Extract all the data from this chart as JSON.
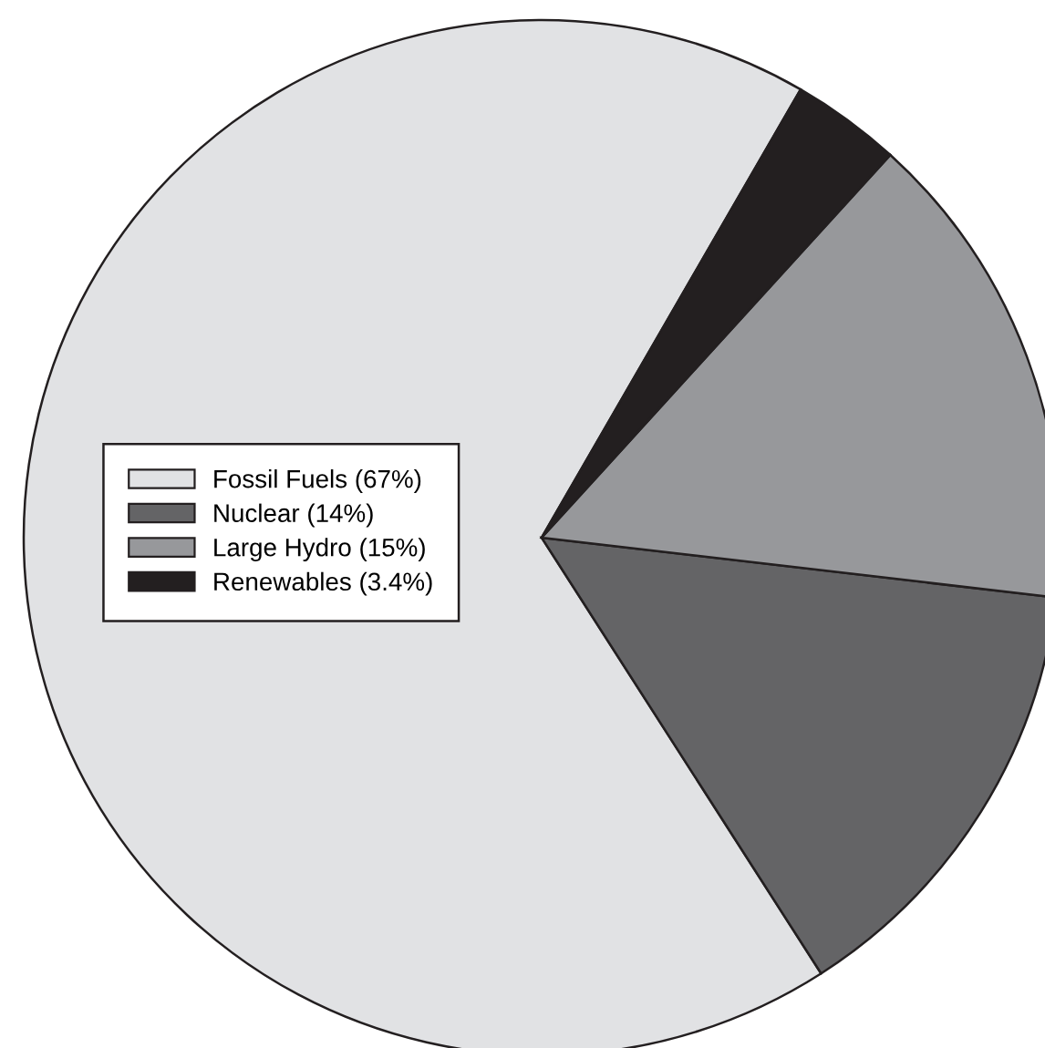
{
  "chart_data": {
    "type": "pie",
    "categories": [
      "Fossil Fuels (67%)",
      "Nuclear (14%)",
      "Large Hydro (15%)",
      "Renewables (3.4%)"
    ],
    "values": [
      67,
      14,
      15,
      3.4
    ],
    "colors": [
      "#e1e2e4",
      "#646466",
      "#97989b",
      "#231f20"
    ],
    "legend": "left"
  }
}
